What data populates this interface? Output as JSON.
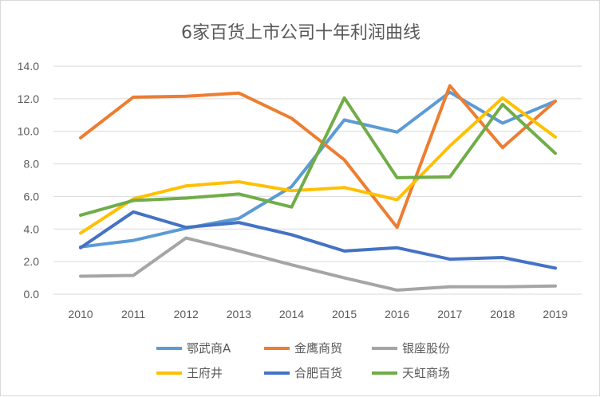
{
  "chart_data": {
    "type": "line",
    "title": "6家百货上市公司十年利润曲线",
    "categories": [
      "2010",
      "2011",
      "2012",
      "2013",
      "2014",
      "2015",
      "2016",
      "2017",
      "2018",
      "2019"
    ],
    "ylim": [
      0,
      14
    ],
    "yticks": [
      "0.0",
      "2.0",
      "4.0",
      "6.0",
      "8.0",
      "10.0",
      "12.0",
      "14.0"
    ],
    "grid": true,
    "legend_position": "bottom",
    "series": [
      {
        "name": "鄂武商A",
        "color": "#5B9BD5",
        "values": [
          2.9,
          3.3,
          4.05,
          4.65,
          6.6,
          10.7,
          9.95,
          12.4,
          10.5,
          11.85
        ]
      },
      {
        "name": "金鹰商贸",
        "color": "#ED7D31",
        "values": [
          9.6,
          12.1,
          12.15,
          12.35,
          10.8,
          8.25,
          4.1,
          12.8,
          9.0,
          11.85
        ]
      },
      {
        "name": "银座股份",
        "color": "#A5A5A5",
        "values": [
          1.1,
          1.15,
          3.45,
          2.65,
          1.8,
          1.0,
          0.25,
          0.45,
          0.45,
          0.5
        ]
      },
      {
        "name": "王府井",
        "color": "#FFC000",
        "values": [
          3.75,
          5.85,
          6.65,
          6.9,
          6.35,
          6.55,
          5.8,
          9.1,
          12.05,
          9.65
        ]
      },
      {
        "name": "合肥百货",
        "color": "#4472C4",
        "values": [
          2.85,
          5.05,
          4.1,
          4.4,
          3.65,
          2.65,
          2.85,
          2.15,
          2.25,
          1.6
        ]
      },
      {
        "name": "天虹商场",
        "color": "#70AD47",
        "values": [
          4.85,
          5.75,
          5.9,
          6.15,
          5.35,
          12.05,
          7.15,
          7.2,
          11.65,
          8.65
        ]
      }
    ]
  }
}
